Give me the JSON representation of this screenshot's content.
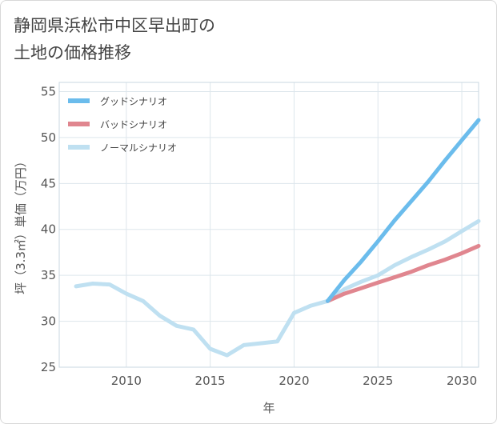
{
  "title_lines": [
    "静岡県浜松市中区早出町の",
    "土地の価格推移"
  ],
  "chart_data": {
    "type": "line",
    "xlabel": "年",
    "ylabel": "坪（3.3㎡）単価（万円）",
    "xlim": [
      2006,
      2031
    ],
    "ylim": [
      25,
      56
    ],
    "x_ticks": [
      2010,
      2015,
      2020,
      2025,
      2030
    ],
    "y_ticks": [
      25,
      30,
      35,
      40,
      45,
      50,
      55
    ],
    "grid": true,
    "legend_position": "top-left",
    "series": [
      {
        "name": "グッドシナリオ",
        "color": "#6bbcec",
        "x": [
          2022,
          2023,
          2024,
          2025,
          2026,
          2027,
          2028,
          2029,
          2030,
          2031
        ],
        "values": [
          32.2,
          34.5,
          36.5,
          38.7,
          41.0,
          43.1,
          45.2,
          47.5,
          49.7,
          51.9
        ]
      },
      {
        "name": "バッドシナリオ",
        "color": "#e0868f",
        "x": [
          2022,
          2023,
          2024,
          2025,
          2026,
          2027,
          2028,
          2029,
          2030,
          2031
        ],
        "values": [
          32.2,
          33.0,
          33.6,
          34.2,
          34.8,
          35.4,
          36.1,
          36.7,
          37.4,
          38.2
        ]
      },
      {
        "name": "ノーマルシナリオ",
        "color": "#bfe0f1",
        "x": [
          2007,
          2008,
          2009,
          2010,
          2011,
          2012,
          2013,
          2014,
          2015,
          2016,
          2017,
          2018,
          2019,
          2020,
          2021,
          2022,
          2023,
          2024,
          2025,
          2026,
          2027,
          2028,
          2029,
          2030,
          2031
        ],
        "values": [
          33.8,
          34.1,
          34.0,
          33.0,
          32.2,
          30.6,
          29.5,
          29.1,
          27.0,
          26.3,
          27.4,
          27.6,
          27.8,
          30.9,
          31.7,
          32.2,
          33.5,
          34.3,
          35.0,
          36.1,
          37.0,
          37.8,
          38.7,
          39.8,
          40.9
        ]
      }
    ]
  }
}
